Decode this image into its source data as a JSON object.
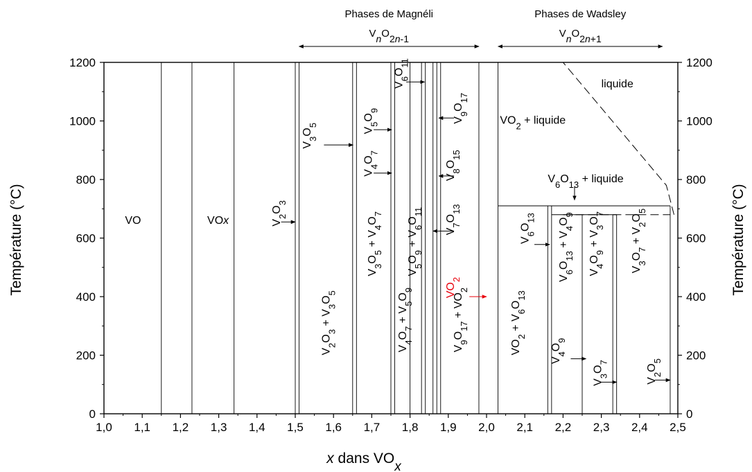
{
  "chart_data": {
    "type": "phase_diagram",
    "xlabel": {
      "italic": "x",
      "text": " dans VO",
      "sub": "x"
    },
    "ylabel_left": "Température (°C)",
    "ylabel_right": "Température (°C)",
    "xlim": [
      1.0,
      2.5
    ],
    "ylim": [
      0,
      1200
    ],
    "x_ticks": [
      "1,0",
      "1,1",
      "1,2",
      "1,3",
      "1,4",
      "1,5",
      "1,6",
      "1,7",
      "1,8",
      "1,9",
      "2,0",
      "2,1",
      "2,2",
      "2,3",
      "2,4",
      "2,5"
    ],
    "y_ticks": [
      "0",
      "200",
      "400",
      "600",
      "800",
      "1000",
      "1200"
    ],
    "series_headers": [
      {
        "name": "Phases de Magnéli",
        "formula": "VnO2n-1",
        "x_range": [
          1.51,
          1.98
        ]
      },
      {
        "name": "Phases de Wadsley",
        "formula": "VnO2n+1",
        "x_range": [
          2.03,
          2.46
        ]
      }
    ],
    "phase_lines_full_height": [
      1.15,
      1.23,
      1.34,
      1.5,
      1.51,
      1.65,
      1.66,
      1.75,
      1.76,
      1.8,
      1.83,
      1.84,
      1.86,
      1.87,
      1.88,
      1.98,
      2.03
    ],
    "phase_lines_partial": [
      {
        "x": 2.16,
        "ymax": 710
      },
      {
        "x": 2.17,
        "ymax": 710
      },
      {
        "x": 2.25,
        "ymax": 680
      },
      {
        "x": 2.33,
        "ymax": 680
      },
      {
        "x": 2.34,
        "ymax": 680
      },
      {
        "x": 2.48,
        "ymax": 710
      }
    ],
    "boundaries": [
      {
        "kind": "solid",
        "points": [
          [
            2.03,
            710
          ],
          [
            2.48,
            710
          ]
        ]
      },
      {
        "kind": "solid",
        "points": [
          [
            2.17,
            680
          ],
          [
            2.34,
            680
          ]
        ]
      },
      {
        "kind": "dashed",
        "points": [
          [
            2.2,
            680
          ],
          [
            2.48,
            680
          ]
        ]
      },
      {
        "kind": "dashed",
        "points": [
          [
            2.49,
            680
          ],
          [
            2.47,
            780
          ],
          [
            2.2,
            1200
          ]
        ]
      }
    ],
    "labels": [
      {
        "id": "vo",
        "text": [
          [
            "VO",
            ""
          ]
        ],
        "x": 1.055,
        "y": 648,
        "rot": 0
      },
      {
        "id": "vox",
        "text": [
          [
            "VO",
            ""
          ],
          [
            "x",
            "i"
          ]
        ],
        "x": 1.27,
        "y": 648,
        "rot": 0
      },
      {
        "id": "v2o3",
        "text": [
          [
            "V",
            ""
          ],
          [
            "2",
            "s"
          ],
          [
            "O",
            ""
          ],
          [
            "3",
            "s"
          ]
        ],
        "x": 1.46,
        "y": 640,
        "rot": -90
      },
      {
        "id": "v3o5",
        "text": [
          [
            "V",
            ""
          ],
          [
            "3",
            "s"
          ],
          [
            "O",
            ""
          ],
          [
            "5",
            "s"
          ]
        ],
        "x": 1.54,
        "y": 905,
        "rot": -90
      },
      {
        "id": "v4o7",
        "text": [
          [
            "V",
            ""
          ],
          [
            "4",
            "s"
          ],
          [
            "O",
            ""
          ],
          [
            "7",
            "s"
          ]
        ],
        "x": 1.7,
        "y": 810,
        "rot": -90
      },
      {
        "id": "v5o9",
        "text": [
          [
            "V",
            ""
          ],
          [
            "5",
            "s"
          ],
          [
            "O",
            ""
          ],
          [
            "9",
            "s"
          ]
        ],
        "x": 1.7,
        "y": 955,
        "rot": -90
      },
      {
        "id": "v6o11",
        "text": [
          [
            "V",
            ""
          ],
          [
            "6",
            "s"
          ],
          [
            "O",
            ""
          ],
          [
            "11",
            "s"
          ]
        ],
        "x": 1.78,
        "y": 1110,
        "rot": -90
      },
      {
        "id": "v9o17",
        "text": [
          [
            "V",
            ""
          ],
          [
            "9",
            "s"
          ],
          [
            "O",
            ""
          ],
          [
            "17",
            "s"
          ]
        ],
        "x": 1.935,
        "y": 990,
        "rot": -90
      },
      {
        "id": "v8o15",
        "text": [
          [
            "V",
            ""
          ],
          [
            "8",
            "s"
          ],
          [
            "O",
            ""
          ],
          [
            "15",
            "s"
          ]
        ],
        "x": 1.915,
        "y": 795,
        "rot": -90
      },
      {
        "id": "v7o13",
        "text": [
          [
            "V",
            ""
          ],
          [
            "7",
            "s"
          ],
          [
            "O",
            ""
          ],
          [
            "13",
            "s"
          ]
        ],
        "x": 1.915,
        "y": 610,
        "rot": -90
      },
      {
        "id": "vo2",
        "text": [
          [
            "VO",
            ""
          ],
          [
            "2",
            "s"
          ]
        ],
        "x": 1.915,
        "y": 395,
        "rot": -90,
        "color": "#e8000b"
      },
      {
        "id": "vo2-liq",
        "text": [
          [
            "VO",
            ""
          ],
          [
            "2",
            "s"
          ],
          [
            " + liquide",
            ""
          ]
        ],
        "x": 2.035,
        "y": 990,
        "rot": 0
      },
      {
        "id": "liquide",
        "text": [
          [
            "liquide",
            ""
          ]
        ],
        "x": 2.3,
        "y": 1115,
        "rot": 0
      },
      {
        "id": "v6o13-liq",
        "text": [
          [
            "V",
            ""
          ],
          [
            "6",
            "s"
          ],
          [
            "O",
            ""
          ],
          [
            "13",
            "s"
          ],
          [
            " + liquide",
            ""
          ]
        ],
        "x": 2.16,
        "y": 790,
        "rot": 0
      },
      {
        "id": "v6o13",
        "text": [
          [
            "V",
            ""
          ],
          [
            "6",
            "s"
          ],
          [
            "O",
            ""
          ],
          [
            "13",
            "s"
          ]
        ],
        "x": 2.11,
        "y": 580,
        "rot": -90
      },
      {
        "id": "v3o5-v4o7",
        "text": [
          [
            "V",
            ""
          ],
          [
            "3",
            "s"
          ],
          [
            "O",
            ""
          ],
          [
            "5",
            "s"
          ],
          [
            " + V",
            ""
          ],
          [
            "4",
            "s"
          ],
          [
            "O",
            ""
          ],
          [
            "7",
            "s"
          ]
        ],
        "x": 1.71,
        "y": 470,
        "rot": -90
      },
      {
        "id": "v5o9-v6o11",
        "text": [
          [
            "V",
            ""
          ],
          [
            "5",
            "s"
          ],
          [
            "O",
            ""
          ],
          [
            "9",
            "s"
          ],
          [
            " + V",
            ""
          ],
          [
            "6",
            "s"
          ],
          [
            "O",
            ""
          ],
          [
            "11",
            "s"
          ]
        ],
        "x": 1.815,
        "y": 470,
        "rot": -90
      },
      {
        "id": "v2o3-v3o5",
        "text": [
          [
            "V",
            ""
          ],
          [
            "2",
            "s"
          ],
          [
            "O",
            ""
          ],
          [
            "3",
            "s"
          ],
          [
            " + V",
            ""
          ],
          [
            "3",
            "s"
          ],
          [
            "O",
            ""
          ],
          [
            "5",
            "s"
          ]
        ],
        "x": 1.59,
        "y": 200,
        "rot": -90
      },
      {
        "id": "v4o7-v5o9",
        "text": [
          [
            "V",
            ""
          ],
          [
            "4",
            "s"
          ],
          [
            "O",
            ""
          ],
          [
            "7",
            "s"
          ],
          [
            " + V",
            ""
          ],
          [
            "5",
            "s"
          ],
          [
            "O",
            ""
          ],
          [
            "9",
            "s"
          ]
        ],
        "x": 1.79,
        "y": 210,
        "rot": -90
      },
      {
        "id": "v9o17-vo2",
        "text": [
          [
            "V",
            ""
          ],
          [
            "9",
            "s"
          ],
          [
            "O",
            ""
          ],
          [
            "17",
            "s"
          ],
          [
            " + VO",
            ""
          ],
          [
            "2",
            "s"
          ]
        ],
        "x": 1.935,
        "y": 210,
        "rot": -90
      },
      {
        "id": "vo2-v6o13",
        "text": [
          [
            "VO",
            ""
          ],
          [
            "2",
            "s"
          ],
          [
            " + V",
            ""
          ],
          [
            "6",
            "s"
          ],
          [
            "O",
            ""
          ],
          [
            "13",
            "s"
          ]
        ],
        "x": 2.085,
        "y": 200,
        "rot": -90
      },
      {
        "id": "v6o13-v4o9",
        "text": [
          [
            "V",
            ""
          ],
          [
            "6",
            "s"
          ],
          [
            "O",
            ""
          ],
          [
            "13",
            "s"
          ],
          [
            " + V",
            ""
          ],
          [
            "4",
            "s"
          ],
          [
            "O",
            ""
          ],
          [
            "9",
            "s"
          ]
        ],
        "x": 2.21,
        "y": 450,
        "rot": -90
      },
      {
        "id": "v4o9-v3o7",
        "text": [
          [
            "V",
            ""
          ],
          [
            "4",
            "s"
          ],
          [
            "O",
            ""
          ],
          [
            "9",
            "s"
          ],
          [
            " + V",
            ""
          ],
          [
            "3",
            "s"
          ],
          [
            "O",
            ""
          ],
          [
            "7",
            "s"
          ]
        ],
        "x": 2.29,
        "y": 470,
        "rot": -90
      },
      {
        "id": "v3o7-v2o5",
        "text": [
          [
            "V",
            ""
          ],
          [
            "3",
            "s"
          ],
          [
            "O",
            ""
          ],
          [
            "7",
            "s"
          ],
          [
            " + V",
            ""
          ],
          [
            "2",
            "s"
          ],
          [
            "O",
            ""
          ],
          [
            "5",
            "s"
          ]
        ],
        "x": 2.4,
        "y": 480,
        "rot": -90
      },
      {
        "id": "v4o9",
        "text": [
          [
            "V",
            ""
          ],
          [
            "4",
            "s"
          ],
          [
            "O",
            ""
          ],
          [
            "9",
            "s"
          ]
        ],
        "x": 2.19,
        "y": 170,
        "rot": -90
      },
      {
        "id": "v3o7",
        "text": [
          [
            "V",
            ""
          ],
          [
            "3",
            "s"
          ],
          [
            "O",
            ""
          ],
          [
            "7",
            "s"
          ]
        ],
        "x": 2.3,
        "y": 95,
        "rot": -90
      },
      {
        "id": "v2o5",
        "text": [
          [
            "V",
            ""
          ],
          [
            "2",
            "s"
          ],
          [
            "O",
            ""
          ],
          [
            "5",
            "s"
          ]
        ],
        "x": 2.44,
        "y": 100,
        "rot": -90
      }
    ],
    "arrows": [
      {
        "from": [
          1.463,
          655
        ],
        "to": [
          1.5,
          655
        ]
      },
      {
        "from": [
          1.575,
          918
        ],
        "to": [
          1.651,
          918
        ]
      },
      {
        "from": [
          1.705,
          822
        ],
        "to": [
          1.752,
          822
        ]
      },
      {
        "from": [
          1.705,
          970
        ],
        "to": [
          1.752,
          970
        ]
      },
      {
        "from": [
          1.79,
          1133
        ],
        "to": [
          1.838,
          1133
        ]
      },
      {
        "from": [
          1.915,
          1010
        ],
        "to": [
          1.875,
          1010
        ]
      },
      {
        "from": [
          1.915,
          812
        ],
        "to": [
          1.875,
          812
        ]
      },
      {
        "from": [
          1.915,
          624
        ],
        "to": [
          1.86,
          624
        ]
      },
      {
        "from": [
          1.955,
          400
        ],
        "to": [
          2.0,
          400
        ],
        "color": "#e8000b"
      },
      {
        "from": [
          2.23,
          775
        ],
        "to": [
          2.23,
          730
        ]
      },
      {
        "from": [
          2.125,
          578
        ],
        "to": [
          2.165,
          578
        ]
      },
      {
        "from": [
          2.22,
          188
        ],
        "to": [
          2.26,
          188
        ]
      },
      {
        "from": [
          2.3,
          108
        ],
        "to": [
          2.34,
          108
        ]
      },
      {
        "from": [
          2.44,
          115
        ],
        "to": [
          2.48,
          115
        ]
      }
    ]
  }
}
